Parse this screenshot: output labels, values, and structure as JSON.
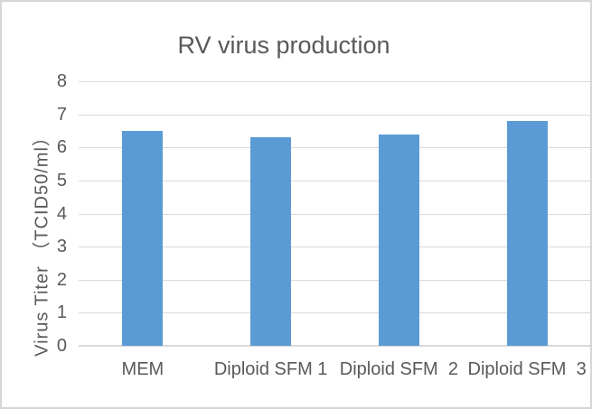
{
  "chart_data": {
    "type": "bar",
    "title": "RV virus production",
    "categories": [
      "MEM",
      "Diploid SFM 1",
      "Diploid SFM  2",
      "Diploid SFM  3"
    ],
    "values": [
      6.5,
      6.3,
      6.4,
      6.8
    ],
    "xlabel": "",
    "ylabel": "Virus Titer （TCID50/ml）",
    "ylim": [
      0,
      8
    ],
    "yticks": [
      0,
      1,
      2,
      3,
      4,
      5,
      6,
      7,
      8
    ],
    "grid": true,
    "legend": false,
    "colors": {
      "bar": "#5B9BD5",
      "gridline": "#D9D9D9",
      "text": "#595959",
      "frame_border": "#D6D6D6",
      "background": "#FFFFFF"
    }
  }
}
